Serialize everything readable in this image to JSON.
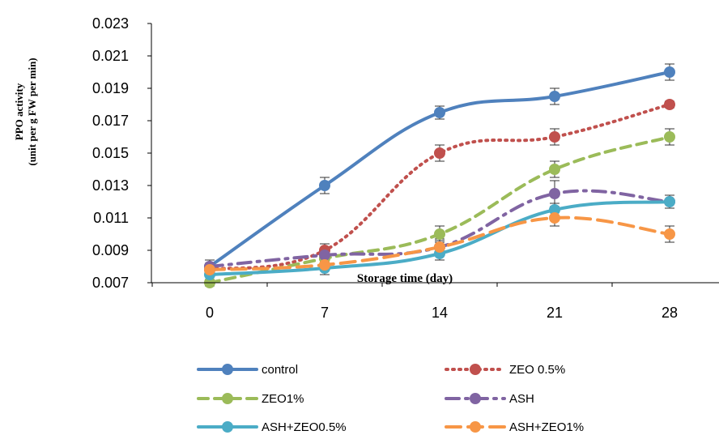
{
  "chart_data": {
    "type": "line",
    "title": "",
    "xlabel": "Storage time (day)",
    "ylabel_lines": [
      "PPO activity",
      "(unit per g FW per min)"
    ],
    "categories": [
      "0",
      "7",
      "14",
      "21",
      "28"
    ],
    "x": [
      0,
      7,
      14,
      21,
      28
    ],
    "ylim": [
      0.007,
      0.023
    ],
    "yticks": [
      "0.007",
      "0.009",
      "0.011",
      "0.013",
      "0.015",
      "0.017",
      "0.019",
      "0.021",
      "0.023"
    ],
    "grid": false,
    "legend_position": "bottom",
    "series": [
      {
        "name": "control",
        "color": "#4f81bd",
        "dash": "solid",
        "values": [
          0.008,
          0.013,
          0.0175,
          0.0185,
          0.02
        ],
        "error": [
          0.0004,
          0.0005,
          0.0004,
          0.0005,
          0.0005
        ]
      },
      {
        "name": "ZEO 0.5%",
        "color": "#c0504d",
        "dash": "dot",
        "values": [
          0.0078,
          0.009,
          0.015,
          0.016,
          0.018
        ],
        "error": [
          0.0004,
          0.0004,
          0.0005,
          0.0005,
          0.0002
        ]
      },
      {
        "name": "ZEO1%",
        "color": "#9bbb59",
        "dash": "dash",
        "values": [
          0.007,
          0.0085,
          0.01,
          0.014,
          0.016
        ],
        "error": [
          0.0002,
          0.0004,
          0.0005,
          0.0005,
          0.0005
        ]
      },
      {
        "name": "ASH",
        "color": "#8064a2",
        "dash": "dashdot",
        "values": [
          0.008,
          0.0087,
          0.0092,
          0.0125,
          0.012
        ],
        "error": [
          0.0004,
          0.0004,
          0.0005,
          0.0008,
          0.0004
        ]
      },
      {
        "name": "ASH+ZEO0.5%",
        "color": "#4bacc6",
        "dash": "solid",
        "values": [
          0.0075,
          0.0079,
          0.0088,
          0.0115,
          0.012
        ],
        "error": [
          0.0003,
          0.0004,
          0.0004,
          0.0004,
          0.0004
        ]
      },
      {
        "name": "ASH+ZEO1%",
        "color": "#f79646",
        "dash": "longdash",
        "values": [
          0.0078,
          0.0081,
          0.0092,
          0.011,
          0.01
        ],
        "error": [
          0.0003,
          0.0003,
          0.0004,
          0.0005,
          0.0005
        ]
      }
    ]
  }
}
